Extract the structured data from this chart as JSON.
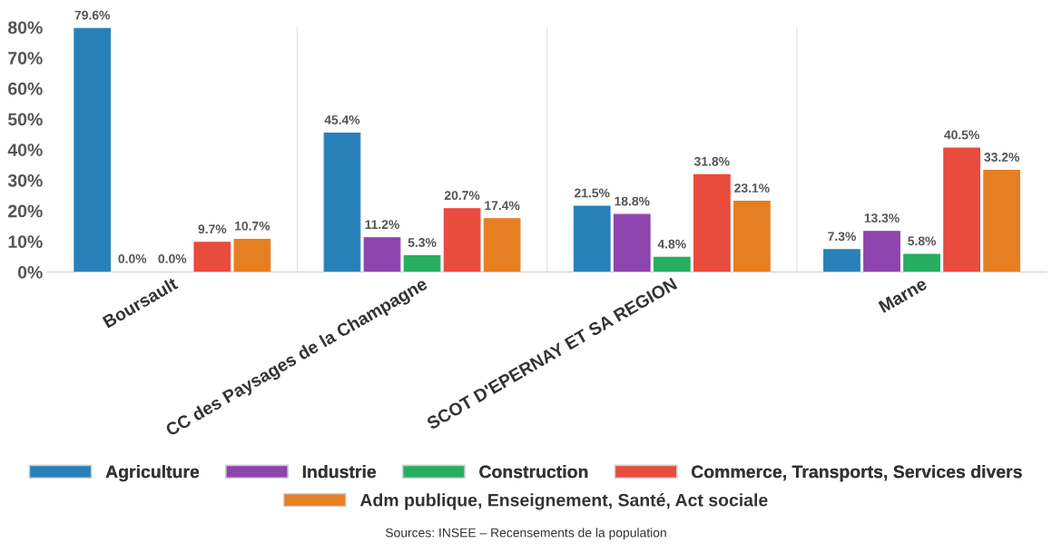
{
  "chart_data": {
    "type": "bar",
    "categories": [
      "Boursault",
      "CC des Paysages de la Champagne",
      "SCOT D'EPERNAY ET SA REGION",
      "Marne"
    ],
    "series": [
      {
        "name": "Agriculture",
        "color": "#2980b9",
        "values": [
          79.6,
          45.4,
          21.5,
          7.3
        ],
        "value_labels": [
          "79.6%",
          "45.4%",
          "21.5%",
          "7.3%"
        ]
      },
      {
        "name": "Industrie",
        "color": "#8e44ad",
        "values": [
          0.0,
          11.2,
          18.8,
          13.3
        ],
        "value_labels": [
          "0.0%",
          "11.2%",
          "18.8%",
          "13.3%"
        ]
      },
      {
        "name": "Construction",
        "color": "#27ae60",
        "values": [
          0.0,
          5.3,
          4.8,
          5.8
        ],
        "value_labels": [
          "0.0%",
          "5.3%",
          "4.8%",
          "5.8%"
        ]
      },
      {
        "name": "Commerce, Transports, Services divers",
        "color": "#e74c3c",
        "values": [
          9.7,
          20.7,
          31.8,
          40.5
        ],
        "value_labels": [
          "9.7%",
          "20.7%",
          "31.8%",
          "40.5%"
        ]
      },
      {
        "name": "Adm publique, Enseignement, Santé, Act sociale",
        "color": "#e67e22",
        "values": [
          10.7,
          17.4,
          23.1,
          33.2
        ],
        "value_labels": [
          "10.7%",
          "17.4%",
          "23.1%",
          "33.2%"
        ]
      }
    ],
    "ylim": [
      0,
      80
    ],
    "yticks": [
      {
        "value": 0,
        "label": "0%"
      },
      {
        "value": 10,
        "label": "10%"
      },
      {
        "value": 20,
        "label": "20%"
      },
      {
        "value": 30,
        "label": "30%"
      },
      {
        "value": 40,
        "label": "40%"
      },
      {
        "value": 50,
        "label": "50%"
      },
      {
        "value": 60,
        "label": "60%"
      },
      {
        "value": 70,
        "label": "70%"
      },
      {
        "value": 80,
        "label": "80%"
      }
    ],
    "grid": "x",
    "legend": "bottom",
    "annotations": [
      "Sources: INSEE – Recensements de la population"
    ]
  }
}
